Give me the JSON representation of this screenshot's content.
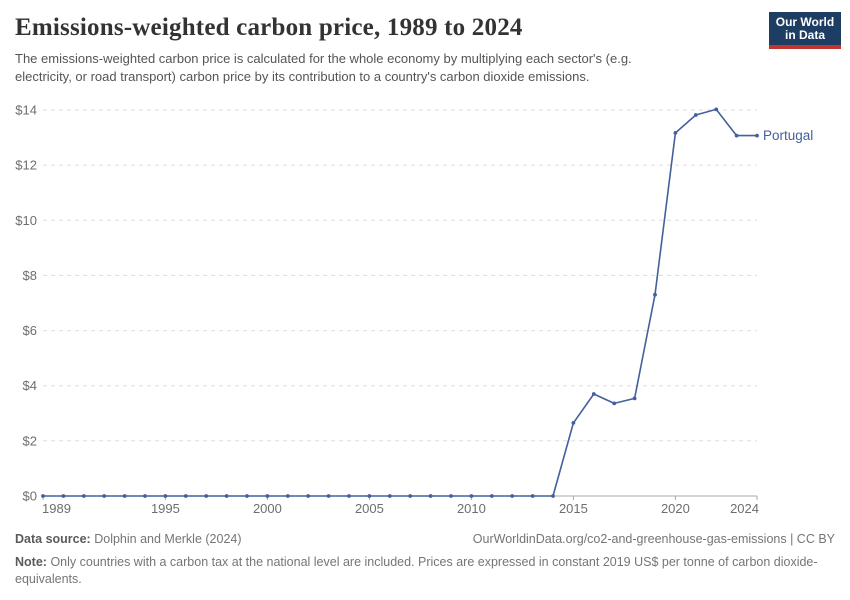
{
  "header": {
    "title": "Emissions-weighted carbon price, 1989 to 2024",
    "subtitle": "The emissions-weighted carbon price is calculated for the whole economy by multiplying each sector's (e.g. electricity, or road transport) carbon price by its contribution to a country's carbon dioxide emissions.",
    "logo": {
      "line1": "Our World",
      "line2": "in Data",
      "bg_color": "#1d3d63",
      "stripe_color": "#c0352f"
    }
  },
  "chart_data": {
    "type": "line",
    "title": "Emissions-weighted carbon price, 1989 to 2024",
    "entity": "Portugal",
    "x": [
      1989,
      1990,
      1991,
      1992,
      1993,
      1994,
      1995,
      1996,
      1997,
      1998,
      1999,
      2000,
      2001,
      2002,
      2003,
      2004,
      2005,
      2006,
      2007,
      2008,
      2009,
      2010,
      2011,
      2012,
      2013,
      2014,
      2015,
      2016,
      2017,
      2018,
      2019,
      2020,
      2021,
      2022,
      2023,
      2024
    ],
    "values": [
      0,
      0,
      0,
      0,
      0,
      0,
      0,
      0,
      0,
      0,
      0,
      0,
      0,
      0,
      0,
      0,
      0,
      0,
      0,
      0,
      0,
      0,
      0,
      0,
      0,
      0,
      2.65,
      3.7,
      3.36,
      3.54,
      7.3,
      13.17,
      13.82,
      14.02,
      13.07,
      13.07
    ],
    "xlim": [
      1989,
      2024
    ],
    "ylim": [
      0,
      14
    ],
    "yticks": [
      0,
      2,
      4,
      6,
      8,
      10,
      12,
      14
    ],
    "y_prefix": "$",
    "xticks": [
      1989,
      1995,
      2000,
      2005,
      2010,
      2015,
      2020,
      2024
    ],
    "grid": "horizontal-dashed",
    "legend_position": "right-of-line-end",
    "line_color": "#44609c",
    "grid_color": "#dcdcdc",
    "axis_color": "#a8a8a8",
    "tick_label_color": "#6e6e6e"
  },
  "footer": {
    "source_label": "Data source:",
    "source_value": "Dolphin and Merkle (2024)",
    "attribution": "OurWorldinData.org/co2-and-greenhouse-gas-emissions | CC BY",
    "note_label": "Note:",
    "note_text": "Only countries with a carbon tax at the national level are included. Prices are expressed in constant 2019 US$ per tonne of carbon dioxide-equivalents."
  }
}
